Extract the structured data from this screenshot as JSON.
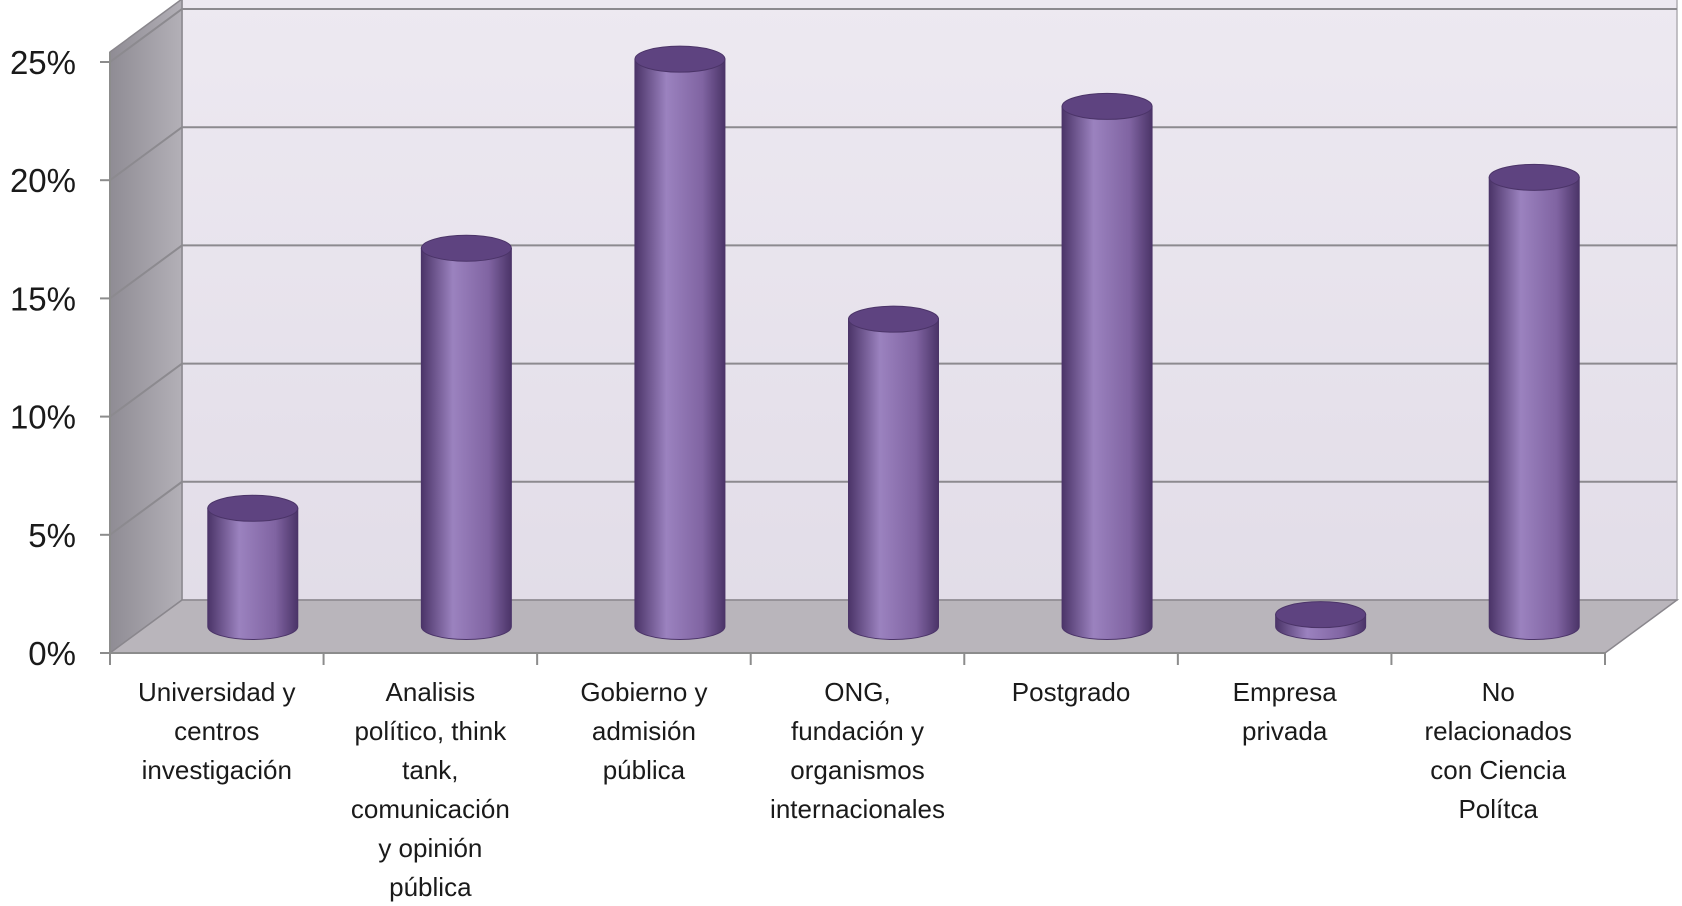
{
  "chart_data": {
    "type": "bar",
    "style": "3d-cylinder",
    "title": "",
    "xlabel": "",
    "ylabel": "",
    "categories": [
      "Universidad y centros investigación",
      "Analisis político, think tank, comunicación y opinión pública",
      "Gobierno y admisión pública",
      "ONG, fundación y organismos internacionales",
      "Postgrado",
      "Empresa privada",
      "No relacionados con Ciencia Polítca"
    ],
    "category_label_lines": [
      [
        "Universidad y",
        "centros",
        "investigación"
      ],
      [
        "Analisis",
        "político, think",
        "tank,",
        "comunicación",
        "y opinión",
        "pública"
      ],
      [
        "Gobierno y",
        "admisión",
        "pública"
      ],
      [
        "ONG,",
        "fundación y",
        "organismos",
        "internacionales"
      ],
      [
        "Postgrado"
      ],
      [
        "Empresa",
        "privada"
      ],
      [
        "No",
        "relacionados",
        "con Ciencia",
        "Polítca"
      ]
    ],
    "values": [
      5,
      16,
      24,
      13,
      22,
      0.5,
      19
    ],
    "ylim": [
      0,
      25
    ],
    "yticks": [
      0,
      5,
      10,
      15,
      20,
      25
    ],
    "ytick_labels": [
      "0%",
      "5%",
      "10%",
      "15%",
      "20%",
      "25%"
    ],
    "grid": true,
    "legend": "none",
    "colors": {
      "bar": "#8064a2",
      "bar_dark": "#4b3468",
      "bar_light": "#9b82bf",
      "wall": "#e9e5ee",
      "side_wall": "#a9a6ad",
      "floor": "#b9b5bb",
      "grid": "#8c8a8f",
      "axis": "#8c8c8c",
      "text": "#1a1a1a"
    }
  }
}
